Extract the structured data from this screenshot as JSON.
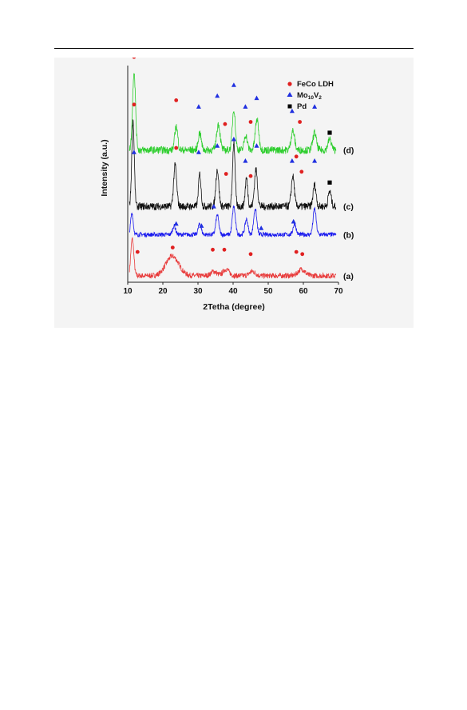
{
  "chart_data": {
    "type": "line",
    "title": "",
    "xlabel": "2Tetha (degree)",
    "ylabel": "Intensity (a.u.)",
    "xlim": [
      10,
      70
    ],
    "xticks": [
      "10",
      "20",
      "30",
      "40",
      "50",
      "60",
      "70"
    ],
    "yticks": "none",
    "grid": false,
    "legend_position": "top-right",
    "legend": [
      {
        "label": "FeCo LDH",
        "marker": "circle",
        "color": "#e02020"
      },
      {
        "label": "Mo",
        "sub": "10",
        "label2": "V",
        "sub2": "2",
        "marker": "triangle",
        "color": "#2030e0"
      },
      {
        "label": "Pd",
        "marker": "square",
        "color": "#000000"
      }
    ],
    "series": [
      {
        "name": "(a)",
        "color": "#e83a3a",
        "baseline": 0.03,
        "noise": 0.025,
        "peaks": [
          [
            11.3,
            0.17,
            0.6
          ],
          [
            22.7,
            0.09,
            2.6
          ],
          [
            34.5,
            0.02,
            1.2
          ],
          [
            38.0,
            0.03,
            1.2
          ],
          [
            45.5,
            0.02,
            1.2
          ],
          [
            59.5,
            0.03,
            1.4
          ]
        ]
      },
      {
        "name": "(b)",
        "color": "#1a1aee",
        "baseline": 0.22,
        "noise": 0.02,
        "peaks": [
          [
            11.2,
            0.1,
            0.5
          ],
          [
            23.2,
            0.04,
            0.6
          ],
          [
            30.5,
            0.05,
            0.6
          ],
          [
            35.5,
            0.09,
            0.6
          ],
          [
            40.2,
            0.13,
            0.6
          ],
          [
            43.8,
            0.07,
            0.6
          ],
          [
            46.3,
            0.12,
            0.6
          ],
          [
            57.5,
            0.05,
            0.6
          ],
          [
            63.2,
            0.12,
            0.6
          ]
        ]
      },
      {
        "name": "(c)",
        "color": "#111111",
        "baseline": 0.35,
        "noise": 0.035,
        "peaks": [
          [
            11.5,
            0.4,
            0.5
          ],
          [
            23.5,
            0.19,
            0.6
          ],
          [
            30.5,
            0.15,
            0.5
          ],
          [
            35.5,
            0.17,
            0.6
          ],
          [
            40.2,
            0.3,
            0.5
          ],
          [
            43.8,
            0.13,
            0.5
          ],
          [
            46.5,
            0.17,
            0.6
          ],
          [
            57.0,
            0.14,
            0.6
          ],
          [
            63.2,
            0.1,
            0.6
          ],
          [
            67.5,
            0.07,
            0.6
          ]
        ]
      },
      {
        "name": "(d)",
        "color": "#2fce2f",
        "baseline": 0.61,
        "noise": 0.035,
        "peaks": [
          [
            11.8,
            0.36,
            0.6
          ],
          [
            23.8,
            0.11,
            0.6
          ],
          [
            30.5,
            0.08,
            0.6
          ],
          [
            35.8,
            0.12,
            0.7
          ],
          [
            40.2,
            0.19,
            0.6
          ],
          [
            43.6,
            0.07,
            0.6
          ],
          [
            46.8,
            0.14,
            0.7
          ],
          [
            57.0,
            0.09,
            0.7
          ],
          [
            63.2,
            0.08,
            0.7
          ],
          [
            67.5,
            0.05,
            0.7
          ]
        ]
      }
    ],
    "markers": [
      {
        "type": "circle",
        "x": 11.8,
        "y": 1.04
      },
      {
        "type": "circle",
        "x": 23.8,
        "y": 0.84
      },
      {
        "type": "circle",
        "x": 37.7,
        "y": 0.73
      },
      {
        "type": "circle",
        "x": 45.0,
        "y": 0.74
      },
      {
        "type": "circle",
        "x": 59.0,
        "y": 0.74
      },
      {
        "type": "triangle",
        "x": 30.2,
        "y": 0.81
      },
      {
        "type": "triangle",
        "x": 35.5,
        "y": 0.86
      },
      {
        "type": "triangle",
        "x": 40.2,
        "y": 0.91
      },
      {
        "type": "triangle",
        "x": 43.5,
        "y": 0.81
      },
      {
        "type": "triangle",
        "x": 46.7,
        "y": 0.85
      },
      {
        "type": "triangle",
        "x": 56.8,
        "y": 0.79
      },
      {
        "type": "triangle",
        "x": 63.2,
        "y": 0.81
      },
      {
        "type": "square",
        "x": 67.5,
        "y": 0.69
      },
      {
        "type": "circle",
        "x": 11.8,
        "y": 0.82
      },
      {
        "type": "circle",
        "x": 23.8,
        "y": 0.62
      },
      {
        "type": "circle",
        "x": 38.0,
        "y": 0.5
      },
      {
        "type": "circle",
        "x": 45.0,
        "y": 0.49
      },
      {
        "type": "circle",
        "x": 58.0,
        "y": 0.58
      },
      {
        "type": "circle",
        "x": 59.5,
        "y": 0.51
      },
      {
        "type": "triangle",
        "x": 11.8,
        "y": 0.6
      },
      {
        "type": "triangle",
        "x": 30.2,
        "y": 0.6
      },
      {
        "type": "triangle",
        "x": 35.5,
        "y": 0.63
      },
      {
        "type": "triangle",
        "x": 40.2,
        "y": 0.66
      },
      {
        "type": "triangle",
        "x": 43.5,
        "y": 0.56
      },
      {
        "type": "triangle",
        "x": 46.7,
        "y": 0.63
      },
      {
        "type": "triangle",
        "x": 56.8,
        "y": 0.56
      },
      {
        "type": "triangle",
        "x": 63.2,
        "y": 0.56
      },
      {
        "type": "square",
        "x": 67.5,
        "y": 0.46
      },
      {
        "type": "triangle",
        "x": 23.8,
        "y": 0.27
      },
      {
        "type": "triangle",
        "x": 31.0,
        "y": 0.26
      },
      {
        "type": "triangle",
        "x": 34.5,
        "y": 0.35
      },
      {
        "type": "triangle",
        "x": 48.0,
        "y": 0.25
      },
      {
        "type": "triangle",
        "x": 57.2,
        "y": 0.28
      },
      {
        "type": "circle",
        "x": 12.8,
        "y": 0.14
      },
      {
        "type": "circle",
        "x": 22.8,
        "y": 0.16
      },
      {
        "type": "circle",
        "x": 34.2,
        "y": 0.15
      },
      {
        "type": "circle",
        "x": 37.5,
        "y": 0.15
      },
      {
        "type": "circle",
        "x": 45.0,
        "y": 0.13
      },
      {
        "type": "circle",
        "x": 58.0,
        "y": 0.14
      },
      {
        "type": "circle",
        "x": 59.7,
        "y": 0.13
      }
    ]
  }
}
